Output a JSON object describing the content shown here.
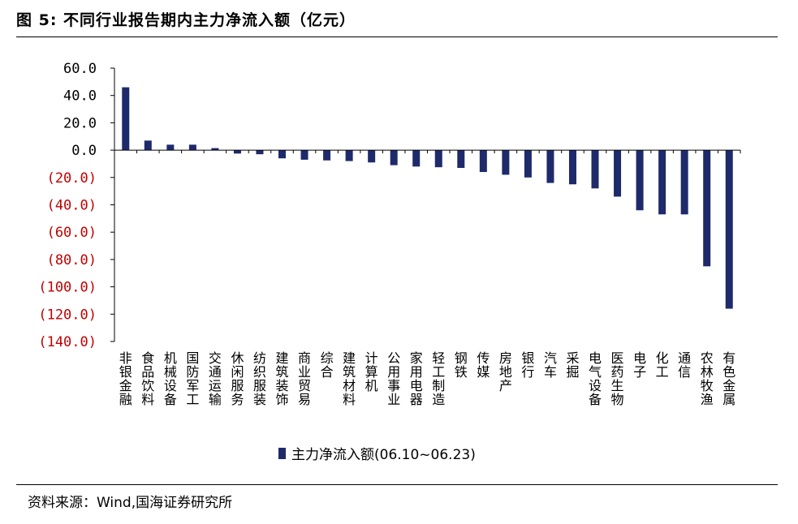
{
  "figure": {
    "title": "图 5:  不同行业报告期内主力净流入额（亿元）",
    "source": "资料来源：Wind,国海证券研究所"
  },
  "colors": {
    "bar": "#1f2a6b",
    "negative_tick": "#c00000",
    "positive_tick": "#000000"
  },
  "chart_data": {
    "type": "bar",
    "title": "",
    "xlabel": "",
    "ylabel": "",
    "ylim": [
      -140,
      60
    ],
    "y_ticks": [
      60,
      40,
      20,
      0,
      -20,
      -40,
      -60,
      -80,
      -100,
      -120,
      -140
    ],
    "y_tick_labels": [
      "60.0",
      "40.0",
      "20.0",
      "0.0",
      "(20.0)",
      "(40.0)",
      "(60.0)",
      "(80.0)",
      "(100.0)",
      "(120.0)",
      "(140.0)"
    ],
    "grid": false,
    "legend_position": "bottom",
    "categories": [
      "非银金融",
      "食品饮料",
      "机械设备",
      "国防军工",
      "交通运输",
      "休闲服务",
      "纺织服装",
      "建筑装饰",
      "商业贸易",
      "综合",
      "建筑材料",
      "计算机",
      "公用事业",
      "家用电器",
      "轻工制造",
      "钢铁",
      "传媒",
      "房地产",
      "银行",
      "汽车",
      "采掘",
      "电气设备",
      "医药生物",
      "电子",
      "化工",
      "通信",
      "农林牧渔",
      "有色金属"
    ],
    "series": [
      {
        "name": "主力净流入额(06.10~06.23)",
        "values": [
          46,
          7,
          4,
          4,
          1.5,
          -2.5,
          -3,
          -6,
          -7,
          -7.5,
          -8,
          -9,
          -11,
          -12,
          -12.5,
          -13,
          -16,
          -18,
          -20,
          -24,
          -25,
          -28,
          -34,
          -44,
          -47,
          -47,
          -85,
          -116
        ]
      }
    ]
  }
}
